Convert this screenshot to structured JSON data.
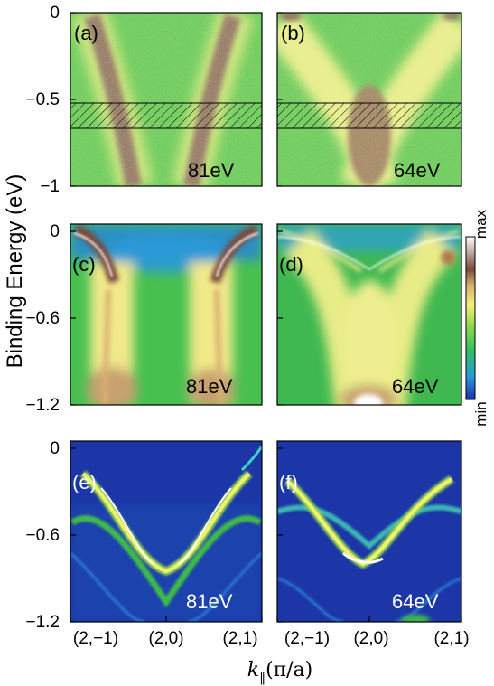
{
  "chart_data": {
    "type": "heatmap",
    "ylabel": "Binding Energy (eV)",
    "xlabel": "k",
    "xlabel_subscript": "‖",
    "xlabel_unit": "(π/a)",
    "xtick_labels": [
      "(2,−1)",
      "(2,0)",
      "(2,1)"
    ],
    "colorbar": {
      "max_label": "max",
      "min_label": "min",
      "colormap": [
        "#1a2fb0",
        "#2a9ad8",
        "#2ec060",
        "#8fd84a",
        "#f2f07a",
        "#d8b070",
        "#7a4a3a",
        "#ffffff"
      ]
    },
    "top_row_ylim": [
      -1,
      0
    ],
    "top_row_yticks": [
      "0",
      "−0.5",
      "−1"
    ],
    "lower_rows_ylim": [
      -1.2,
      0
    ],
    "lower_rows_yticks": [
      "0",
      "−0.6",
      "−1.2"
    ],
    "hatched_band": {
      "panels": [
        "a",
        "b"
      ],
      "energy_range": [
        -0.68,
        -0.55
      ]
    },
    "panels": [
      {
        "id": "a",
        "label": "(a)",
        "energy": "81eV",
        "kind": "experiment"
      },
      {
        "id": "b",
        "label": "(b)",
        "energy": "64eV",
        "kind": "experiment"
      },
      {
        "id": "c",
        "label": "(c)",
        "energy": "81eV",
        "kind": "calculation"
      },
      {
        "id": "d",
        "label": "(d)",
        "energy": "64eV",
        "kind": "calculation"
      },
      {
        "id": "e",
        "label": "(e)",
        "energy": "81eV",
        "kind": "spectral"
      },
      {
        "id": "f",
        "label": "(f)",
        "energy": "64eV",
        "kind": "spectral"
      }
    ]
  }
}
